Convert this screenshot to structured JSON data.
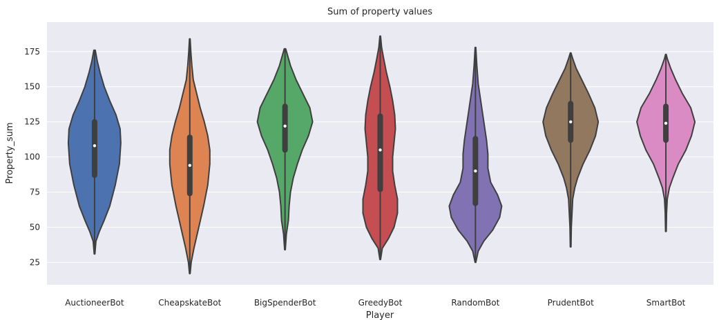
{
  "chart_data": {
    "type": "violin",
    "title": "Sum of property values",
    "xlabel": "Player",
    "ylabel": "Property_sum",
    "ylim": [
      9,
      196
    ],
    "yticks": [
      25,
      50,
      75,
      100,
      125,
      150,
      175
    ],
    "grid": true,
    "background": "#eaeaf2",
    "categories": [
      "AuctioneerBot",
      "CheapskateBot",
      "BigSpenderBot",
      "GreedyBot",
      "RandomBot",
      "PrudentBot",
      "SmartBot"
    ],
    "colors": [
      "#4c72b0",
      "#dd8452",
      "#55a868",
      "#c44e52",
      "#8172b3",
      "#937860",
      "#da8bc3"
    ],
    "series": [
      {
        "name": "AuctioneerBot",
        "min": 31,
        "max": 176,
        "q1": 87,
        "median": 108,
        "q3": 125,
        "profile": [
          [
            31,
            0.5
          ],
          [
            40,
            2
          ],
          [
            47,
            7
          ],
          [
            55,
            14
          ],
          [
            65,
            22
          ],
          [
            80,
            30
          ],
          [
            95,
            36
          ],
          [
            110,
            38
          ],
          [
            120,
            37
          ],
          [
            130,
            31
          ],
          [
            140,
            22
          ],
          [
            150,
            14
          ],
          [
            160,
            8
          ],
          [
            168,
            4
          ],
          [
            176,
            1
          ]
        ]
      },
      {
        "name": "CheapskateBot",
        "min": 17,
        "max": 184,
        "q1": 74,
        "median": 94,
        "q3": 114,
        "profile": [
          [
            17,
            0.5
          ],
          [
            25,
            2
          ],
          [
            35,
            6
          ],
          [
            50,
            13
          ],
          [
            65,
            20
          ],
          [
            80,
            26
          ],
          [
            95,
            29
          ],
          [
            105,
            29
          ],
          [
            115,
            26
          ],
          [
            125,
            21
          ],
          [
            135,
            15
          ],
          [
            145,
            10
          ],
          [
            155,
            5
          ],
          [
            165,
            3
          ],
          [
            175,
            1.5
          ],
          [
            184,
            0.5
          ]
        ]
      },
      {
        "name": "BigSpenderBot",
        "min": 34,
        "max": 177,
        "q1": 105,
        "median": 122,
        "q3": 136,
        "profile": [
          [
            34,
            0.5
          ],
          [
            45,
            2
          ],
          [
            55,
            5
          ],
          [
            65,
            6
          ],
          [
            75,
            8
          ],
          [
            85,
            12
          ],
          [
            95,
            18
          ],
          [
            105,
            25
          ],
          [
            115,
            34
          ],
          [
            125,
            40
          ],
          [
            135,
            36
          ],
          [
            145,
            26
          ],
          [
            155,
            16
          ],
          [
            165,
            8
          ],
          [
            177,
            1
          ]
        ]
      },
      {
        "name": "GreedyBot",
        "min": 27,
        "max": 186,
        "q1": 77,
        "median": 105,
        "q3": 129,
        "profile": [
          [
            27,
            0.5
          ],
          [
            35,
            3
          ],
          [
            42,
            12
          ],
          [
            50,
            20
          ],
          [
            60,
            25
          ],
          [
            70,
            25
          ],
          [
            80,
            21
          ],
          [
            90,
            18
          ],
          [
            100,
            18
          ],
          [
            110,
            20
          ],
          [
            120,
            22
          ],
          [
            130,
            21
          ],
          [
            140,
            18
          ],
          [
            150,
            14
          ],
          [
            160,
            9
          ],
          [
            170,
            5
          ],
          [
            178,
            2
          ],
          [
            186,
            0.5
          ]
        ]
      },
      {
        "name": "RandomBot",
        "min": 25,
        "max": 178,
        "q1": 67,
        "median": 90,
        "q3": 113,
        "profile": [
          [
            25,
            0.5
          ],
          [
            33,
            4
          ],
          [
            40,
            12
          ],
          [
            48,
            25
          ],
          [
            57,
            35
          ],
          [
            65,
            38
          ],
          [
            73,
            32
          ],
          [
            82,
            22
          ],
          [
            92,
            18
          ],
          [
            102,
            18
          ],
          [
            112,
            16
          ],
          [
            122,
            13
          ],
          [
            132,
            10
          ],
          [
            142,
            7
          ],
          [
            152,
            4
          ],
          [
            165,
            2
          ],
          [
            178,
            0.5
          ]
        ]
      },
      {
        "name": "PrudentBot",
        "min": 36,
        "max": 174,
        "q1": 112,
        "median": 125,
        "q3": 138,
        "profile": [
          [
            36,
            0.5
          ],
          [
            50,
            1
          ],
          [
            60,
            2
          ],
          [
            70,
            3
          ],
          [
            78,
            6
          ],
          [
            85,
            10
          ],
          [
            95,
            18
          ],
          [
            105,
            28
          ],
          [
            115,
            36
          ],
          [
            125,
            40
          ],
          [
            135,
            35
          ],
          [
            145,
            26
          ],
          [
            155,
            16
          ],
          [
            163,
            8
          ],
          [
            170,
            3
          ],
          [
            174,
            0.5
          ]
        ]
      },
      {
        "name": "SmartBot",
        "min": 47,
        "max": 173,
        "q1": 112,
        "median": 124,
        "q3": 136,
        "profile": [
          [
            47,
            0.5
          ],
          [
            60,
            1
          ],
          [
            70,
            2
          ],
          [
            78,
            5
          ],
          [
            85,
            10
          ],
          [
            95,
            18
          ],
          [
            105,
            29
          ],
          [
            115,
            37
          ],
          [
            125,
            42
          ],
          [
            135,
            36
          ],
          [
            145,
            24
          ],
          [
            155,
            14
          ],
          [
            163,
            7
          ],
          [
            170,
            2
          ],
          [
            173,
            0.5
          ]
        ]
      }
    ]
  }
}
